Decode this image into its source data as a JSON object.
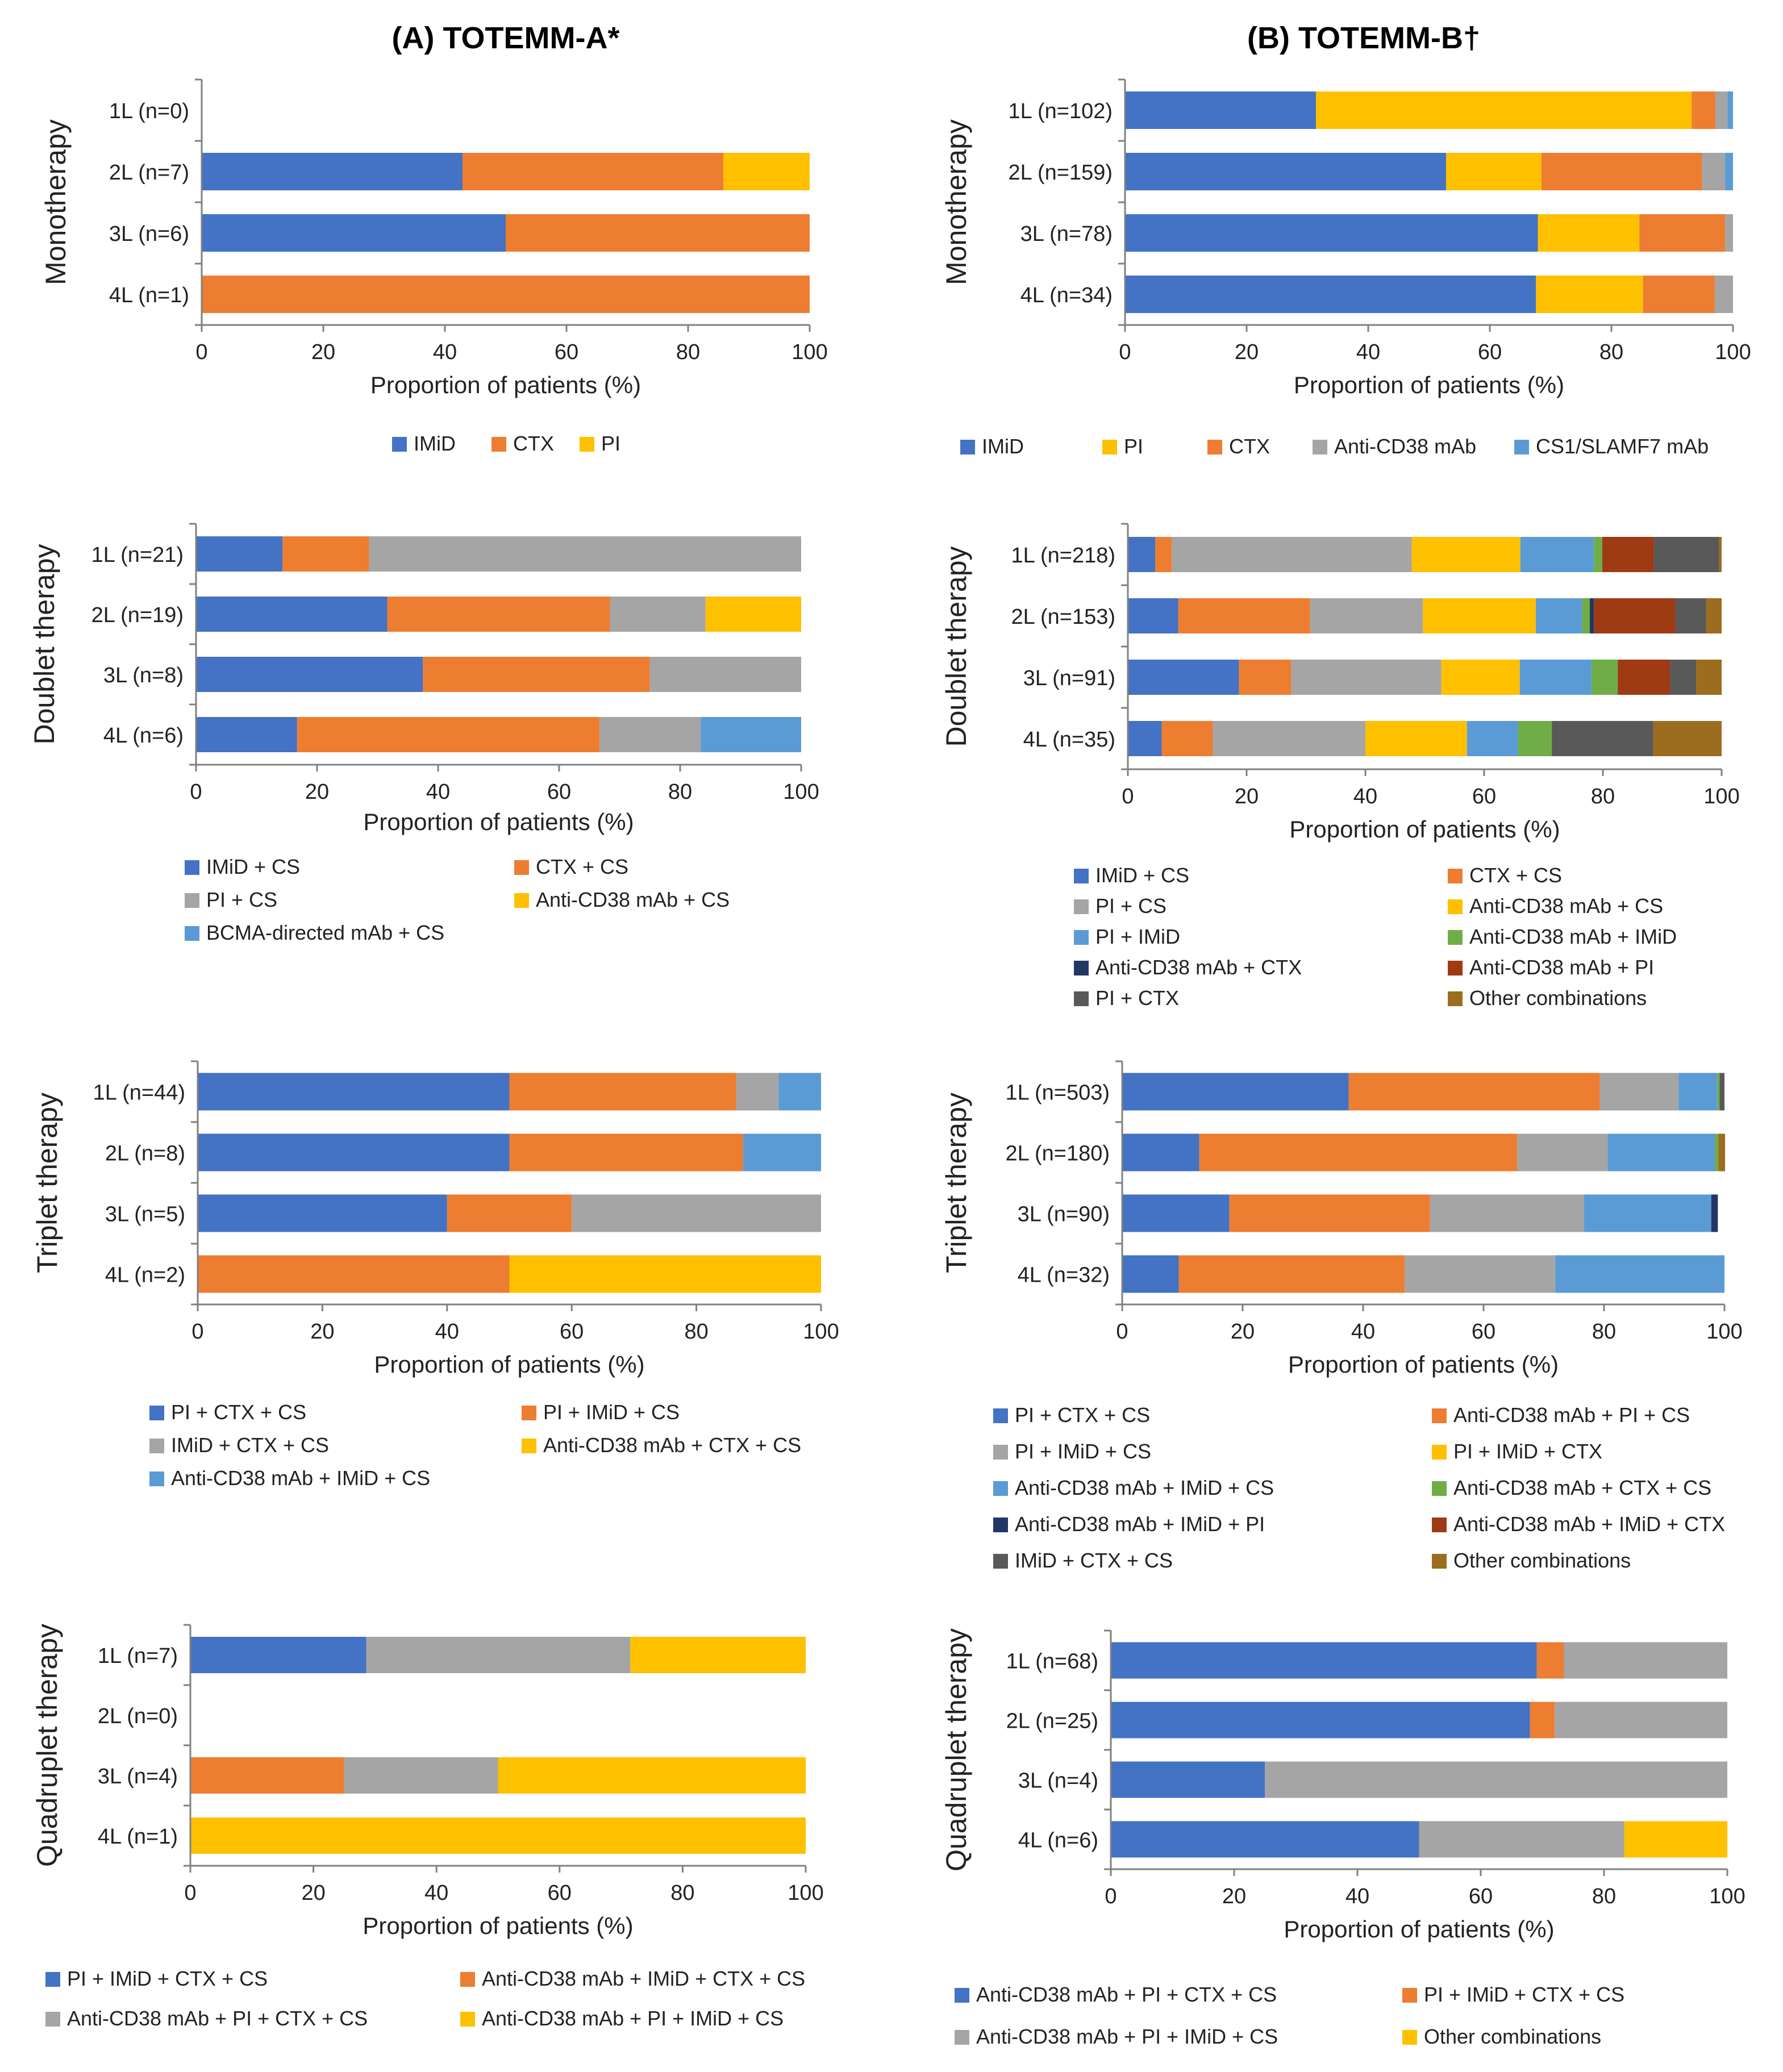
{
  "figure": {
    "left_title": "(A) TOTEMM-A*",
    "right_title": "(B) TOTEMM-B†"
  },
  "chart_data": [
    {
      "id": "A-mono",
      "type": "bar",
      "orientation": "horizontal",
      "stacked": true,
      "panel": "(A) TOTEMM-A*",
      "ylabel": "Monotherapy",
      "xlabel": "Proportion of patients (%)",
      "xlim": [
        0,
        100
      ],
      "xticks": [
        0,
        20,
        40,
        60,
        80,
        100
      ],
      "categories": [
        "1L (n=0)",
        "2L (n=7)",
        "3L (n=6)",
        "4L (n=1)"
      ],
      "legend_cols": 3,
      "series": [
        {
          "name": "IMiD",
          "color": "#4472C4",
          "values": [
            0,
            42.9,
            50,
            0
          ]
        },
        {
          "name": "CTX",
          "color": "#ED7D31",
          "values": [
            0,
            42.9,
            50,
            100
          ]
        },
        {
          "name": "PI",
          "color": "#FFC000",
          "values": [
            0,
            14.2,
            0,
            0
          ]
        }
      ]
    },
    {
      "id": "B-mono",
      "type": "bar",
      "orientation": "horizontal",
      "stacked": true,
      "panel": "(B) TOTEMM-B†",
      "ylabel": "Monotherapy",
      "xlabel": "Proportion of patients (%)",
      "xlim": [
        0,
        100
      ],
      "xticks": [
        0,
        20,
        40,
        60,
        80,
        100
      ],
      "categories": [
        "1L (n=102)",
        "2L (n=159)",
        "3L (n=78)",
        "4L (n=34)"
      ],
      "legend_cols": 5,
      "series": [
        {
          "name": "IMiD",
          "color": "#4472C4",
          "values": [
            31.4,
            52.8,
            67.9,
            67.6
          ]
        },
        {
          "name": "PI",
          "color": "#FFC000",
          "values": [
            61.8,
            15.7,
            16.7,
            17.6
          ]
        },
        {
          "name": "CTX",
          "color": "#ED7D31",
          "values": [
            3.9,
            26.4,
            14.1,
            11.8
          ]
        },
        {
          "name": "Anti-CD38 mAb",
          "color": "#A5A5A5",
          "values": [
            2.0,
            3.8,
            1.3,
            3.0
          ]
        },
        {
          "name": "CS1/SLAMF7 mAb",
          "color": "#5B9BD5",
          "values": [
            0.9,
            1.3,
            0,
            0
          ]
        }
      ]
    },
    {
      "id": "A-doublet",
      "type": "bar",
      "orientation": "horizontal",
      "stacked": true,
      "panel": "(A) TOTEMM-A*",
      "ylabel": "Doublet therapy",
      "xlabel": "Proportion of patients (%)",
      "xlim": [
        0,
        100
      ],
      "xticks": [
        0,
        20,
        40,
        60,
        80,
        100
      ],
      "categories": [
        "1L (n=21)",
        "2L (n=19)",
        "3L (n=8)",
        "4L (n=6)"
      ],
      "legend_cols": 2,
      "series": [
        {
          "name": "IMiD + CS",
          "color": "#4472C4",
          "values": [
            14.3,
            31.6,
            37.5,
            16.7
          ]
        },
        {
          "name": "CTX + CS",
          "color": "#ED7D31",
          "values": [
            14.3,
            36.8,
            37.5,
            50.0
          ]
        },
        {
          "name": "PI + CS",
          "color": "#A5A5A5",
          "values": [
            71.4,
            15.8,
            25.0,
            16.7
          ]
        },
        {
          "name": "Anti-CD38 mAb + CS",
          "color": "#FFC000",
          "values": [
            0,
            15.8,
            0,
            0
          ]
        },
        {
          "name": "BCMA-directed mAb + CS",
          "color": "#5B9BD5",
          "values": [
            0,
            0,
            0,
            16.6
          ]
        }
      ]
    },
    {
      "id": "B-doublet",
      "type": "bar",
      "orientation": "horizontal",
      "stacked": true,
      "panel": "(B) TOTEMM-B†",
      "ylabel": "Doublet therapy",
      "xlabel": "Proportion of patients (%)",
      "xlim": [
        0,
        100
      ],
      "xticks": [
        0,
        20,
        40,
        60,
        80,
        100
      ],
      "categories": [
        "1L (n=218)",
        "2L (n=153)",
        "3L (n=91)",
        "4L (n=35)"
      ],
      "legend_cols": 2,
      "series": [
        {
          "name": "IMiD + CS",
          "color": "#4472C4",
          "values": [
            4.6,
            8.5,
            18.7,
            5.7
          ]
        },
        {
          "name": "CTX + CS",
          "color": "#ED7D31",
          "values": [
            2.8,
            22.2,
            8.8,
            8.6
          ]
        },
        {
          "name": "PI + CS",
          "color": "#A5A5A5",
          "values": [
            40.4,
            19.0,
            25.3,
            25.7
          ]
        },
        {
          "name": "Anti-CD38 mAb + CS",
          "color": "#FFC000",
          "values": [
            18.3,
            19.0,
            13.2,
            17.1
          ]
        },
        {
          "name": "PI + IMiD",
          "color": "#5B9BD5",
          "values": [
            12.4,
            7.8,
            12.1,
            8.6
          ]
        },
        {
          "name": "Anti-CD38 mAb + IMiD",
          "color": "#70AD47",
          "values": [
            1.4,
            1.3,
            4.4,
            5.7
          ]
        },
        {
          "name": "Anti-CD38 mAb + CTX",
          "color": "#203864",
          "values": [
            0,
            0.7,
            0,
            0
          ]
        },
        {
          "name": "Anti-CD38 mAb + PI",
          "color": "#9E3A14",
          "values": [
            8.7,
            13.7,
            8.8,
            0
          ]
        },
        {
          "name": "PI + CTX",
          "color": "#595959",
          "values": [
            11.0,
            5.2,
            4.4,
            17.1
          ]
        },
        {
          "name": "Other combinations",
          "color": "#9C6D1F",
          "values": [
            0.4,
            2.6,
            4.3,
            11.5
          ]
        }
      ]
    },
    {
      "id": "A-triplet",
      "type": "bar",
      "orientation": "horizontal",
      "stacked": true,
      "panel": "(A) TOTEMM-A*",
      "ylabel": "Triplet therapy",
      "xlabel": "Proportion of patients (%)",
      "xlim": [
        0,
        100
      ],
      "xticks": [
        0,
        20,
        40,
        60,
        80,
        100
      ],
      "categories": [
        "1L (n=44)",
        "2L (n=8)",
        "3L (n=5)",
        "4L (n=2)"
      ],
      "legend_cols": 2,
      "series": [
        {
          "name": "PI  + CTX + CS",
          "color": "#4472C4",
          "values": [
            50.0,
            50.0,
            40.0,
            0
          ]
        },
        {
          "name": "PI + IMiD + CS",
          "color": "#ED7D31",
          "values": [
            36.4,
            37.5,
            20.0,
            50.0
          ]
        },
        {
          "name": "IMiD + CTX + CS",
          "color": "#A5A5A5",
          "values": [
            6.8,
            0,
            40.0,
            0
          ]
        },
        {
          "name": "Anti-CD38 mAb + CTX + CS",
          "color": "#FFC000",
          "values": [
            0,
            0,
            0,
            50.0
          ]
        },
        {
          "name": "Anti-CD38 mAb + IMiD + CS",
          "color": "#5B9BD5",
          "values": [
            6.8,
            12.5,
            0,
            0
          ]
        }
      ]
    },
    {
      "id": "B-triplet",
      "type": "bar",
      "orientation": "horizontal",
      "stacked": true,
      "panel": "(B) TOTEMM-B†",
      "ylabel": "Triplet therapy",
      "xlabel": "Proportion of patients (%)",
      "xlim": [
        0,
        100
      ],
      "xticks": [
        0,
        20,
        40,
        60,
        80,
        100
      ],
      "categories": [
        "1L (n=503)",
        "2L (n=180)",
        "3L (n=90)",
        "4L (n=32)"
      ],
      "legend_cols": 2,
      "series": [
        {
          "name": "PI + CTX + CS",
          "color": "#4472C4",
          "values": [
            37.6,
            12.8,
            17.8,
            9.4
          ]
        },
        {
          "name": "Anti-CD38 mAb + PI + CS",
          "color": "#ED7D31",
          "values": [
            41.7,
            52.8,
            33.3,
            37.5
          ]
        },
        {
          "name": "PI + IMiD + CS",
          "color": "#A5A5A5",
          "values": [
            13.1,
            15.0,
            25.6,
            25.0
          ]
        },
        {
          "name": "PI + IMiD + CTX",
          "color": "#FFC000",
          "values": [
            0,
            0,
            0,
            0
          ]
        },
        {
          "name": "Anti-CD38 mAb + IMiD + CS",
          "color": "#5B9BD5",
          "values": [
            6.4,
            17.8,
            21.1,
            28.1
          ]
        },
        {
          "name": "Anti-CD38 mAb + CTX + CS",
          "color": "#70AD47",
          "values": [
            0.4,
            0.6,
            0,
            0
          ]
        },
        {
          "name": "Anti-CD38 mAb + IMiD + PI",
          "color": "#203864",
          "values": [
            0,
            0,
            1.1,
            0
          ]
        },
        {
          "name": "Anti-CD38 mAb + IMiD + CTX",
          "color": "#9E3A14",
          "values": [
            0,
            0,
            0,
            0
          ]
        },
        {
          "name": "IMiD + CTX + CS",
          "color": "#595959",
          "values": [
            0.8,
            0,
            0,
            0
          ]
        },
        {
          "name": "Other combinations",
          "color": "#9C6D1F",
          "values": [
            0,
            1.1,
            0,
            0
          ]
        }
      ]
    },
    {
      "id": "A-quad",
      "type": "bar",
      "orientation": "horizontal",
      "stacked": true,
      "panel": "(A) TOTEMM-A*",
      "ylabel": "Quadruplet therapy",
      "xlabel": "Proportion of patients (%)",
      "xlim": [
        0,
        100
      ],
      "xticks": [
        0,
        20,
        40,
        60,
        80,
        100
      ],
      "categories": [
        "1L (n=7)",
        "2L (n=0)",
        "3L (n=4)",
        "4L (n=1)"
      ],
      "legend_cols": 2,
      "series": [
        {
          "name": "PI + IMiD + CTX + CS",
          "color": "#4472C4",
          "values": [
            28.6,
            0,
            0,
            0
          ]
        },
        {
          "name": "Anti-CD38 mAb + IMiD + CTX + CS",
          "color": "#ED7D31",
          "values": [
            0,
            0,
            25.0,
            0
          ]
        },
        {
          "name": "Anti-CD38 mAb + PI + CTX + CS",
          "color": "#A5A5A5",
          "values": [
            42.9,
            0,
            25.0,
            0
          ]
        },
        {
          "name": "Anti-CD38 mAb + PI + IMiD + CS",
          "color": "#FFC000",
          "values": [
            28.5,
            0,
            50.0,
            100
          ]
        }
      ]
    },
    {
      "id": "B-quad",
      "type": "bar",
      "orientation": "horizontal",
      "stacked": true,
      "panel": "(B) TOTEMM-B†",
      "ylabel": "Quadruplet therapy",
      "xlabel": "Proportion of patients (%)",
      "xlim": [
        0,
        100
      ],
      "xticks": [
        0,
        20,
        40,
        60,
        80,
        100
      ],
      "categories": [
        "1L (n=68)",
        "2L (n=25)",
        "3L (n=4)",
        "4L (n=6)"
      ],
      "legend_cols": 2,
      "series": [
        {
          "name": "Anti-CD38 mAb + PI + CTX + CS",
          "color": "#4472C4",
          "values": [
            69.1,
            68.0,
            25.0,
            50.0
          ]
        },
        {
          "name": "PI + IMiD + CTX + CS",
          "color": "#ED7D31",
          "values": [
            4.4,
            4.0,
            0,
            0
          ]
        },
        {
          "name": "Anti-CD38 mAb + PI + IMiD + CS",
          "color": "#A5A5A5",
          "values": [
            26.5,
            28.0,
            75.0,
            33.3
          ]
        },
        {
          "name": "Other combinations",
          "color": "#FFC000",
          "values": [
            0,
            0,
            0,
            16.7
          ]
        }
      ]
    }
  ]
}
